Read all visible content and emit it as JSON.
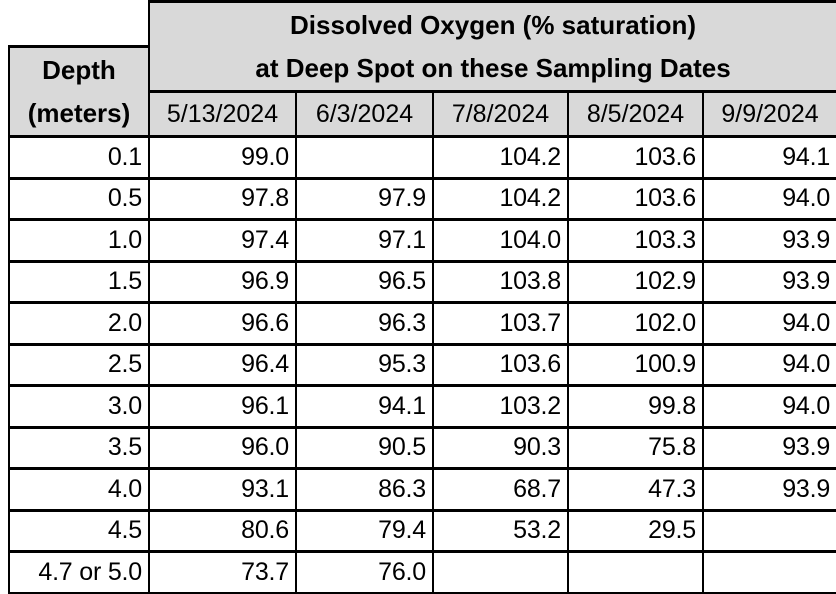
{
  "table": {
    "title_line1": "Dissolved Oxygen (% saturation)",
    "title_line2": "at Deep Spot on these Sampling Dates",
    "depth_header_line1": "Depth",
    "depth_header_line2": "(meters)",
    "date_columns": [
      "5/13/2024",
      "6/3/2024",
      "7/8/2024",
      "8/5/2024",
      "9/9/2024"
    ],
    "rows": [
      {
        "depth": "0.1",
        "values": [
          "99.0",
          "",
          "104.2",
          "103.6",
          "94.1"
        ]
      },
      {
        "depth": "0.5",
        "values": [
          "97.8",
          "97.9",
          "104.2",
          "103.6",
          "94.0"
        ]
      },
      {
        "depth": "1.0",
        "values": [
          "97.4",
          "97.1",
          "104.0",
          "103.3",
          "93.9"
        ]
      },
      {
        "depth": "1.5",
        "values": [
          "96.9",
          "96.5",
          "103.8",
          "102.9",
          "93.9"
        ]
      },
      {
        "depth": "2.0",
        "values": [
          "96.6",
          "96.3",
          "103.7",
          "102.0",
          "94.0"
        ]
      },
      {
        "depth": "2.5",
        "values": [
          "96.4",
          "95.3",
          "103.6",
          "100.9",
          "94.0"
        ]
      },
      {
        "depth": "3.0",
        "values": [
          "96.1",
          "94.1",
          "103.2",
          "99.8",
          "94.0"
        ]
      },
      {
        "depth": "3.5",
        "values": [
          "96.0",
          "90.5",
          "90.3",
          "75.8",
          "93.9"
        ]
      },
      {
        "depth": "4.0",
        "values": [
          "93.1",
          "86.3",
          "68.7",
          "47.3",
          "93.9"
        ]
      },
      {
        "depth": "4.5",
        "values": [
          "80.6",
          "79.4",
          "53.2",
          "29.5",
          ""
        ]
      },
      {
        "depth": "4.7 or 5.0",
        "values": [
          "73.7",
          "76.0",
          "",
          "",
          ""
        ]
      }
    ]
  },
  "colors": {
    "header_bg": "#d9d9d9",
    "cell_bg": "#ffffff",
    "border": "#000000",
    "text": "#000000"
  },
  "chart_data": {
    "type": "table",
    "title": "Dissolved Oxygen (% saturation) at Deep Spot on these Sampling Dates",
    "row_label": "Depth (meters)",
    "columns": [
      "5/13/2024",
      "6/3/2024",
      "7/8/2024",
      "8/5/2024",
      "9/9/2024"
    ],
    "depths_m": [
      "0.1",
      "0.5",
      "1.0",
      "1.5",
      "2.0",
      "2.5",
      "3.0",
      "3.5",
      "4.0",
      "4.5",
      "4.7 or 5.0"
    ],
    "series": [
      {
        "name": "5/13/2024",
        "values": [
          99.0,
          97.8,
          97.4,
          96.9,
          96.6,
          96.4,
          96.1,
          96.0,
          93.1,
          80.6,
          73.7
        ]
      },
      {
        "name": "6/3/2024",
        "values": [
          null,
          97.9,
          97.1,
          96.5,
          96.3,
          95.3,
          94.1,
          90.5,
          86.3,
          79.4,
          76.0
        ]
      },
      {
        "name": "7/8/2024",
        "values": [
          104.2,
          104.2,
          104.0,
          103.8,
          103.7,
          103.6,
          103.2,
          90.3,
          68.7,
          53.2,
          null
        ]
      },
      {
        "name": "8/5/2024",
        "values": [
          103.6,
          103.6,
          103.3,
          102.9,
          102.0,
          100.9,
          99.8,
          75.8,
          47.3,
          29.5,
          null
        ]
      },
      {
        "name": "9/9/2024",
        "values": [
          94.1,
          94.0,
          93.9,
          93.9,
          94.0,
          94.0,
          94.0,
          93.9,
          93.9,
          null,
          null
        ]
      }
    ]
  }
}
